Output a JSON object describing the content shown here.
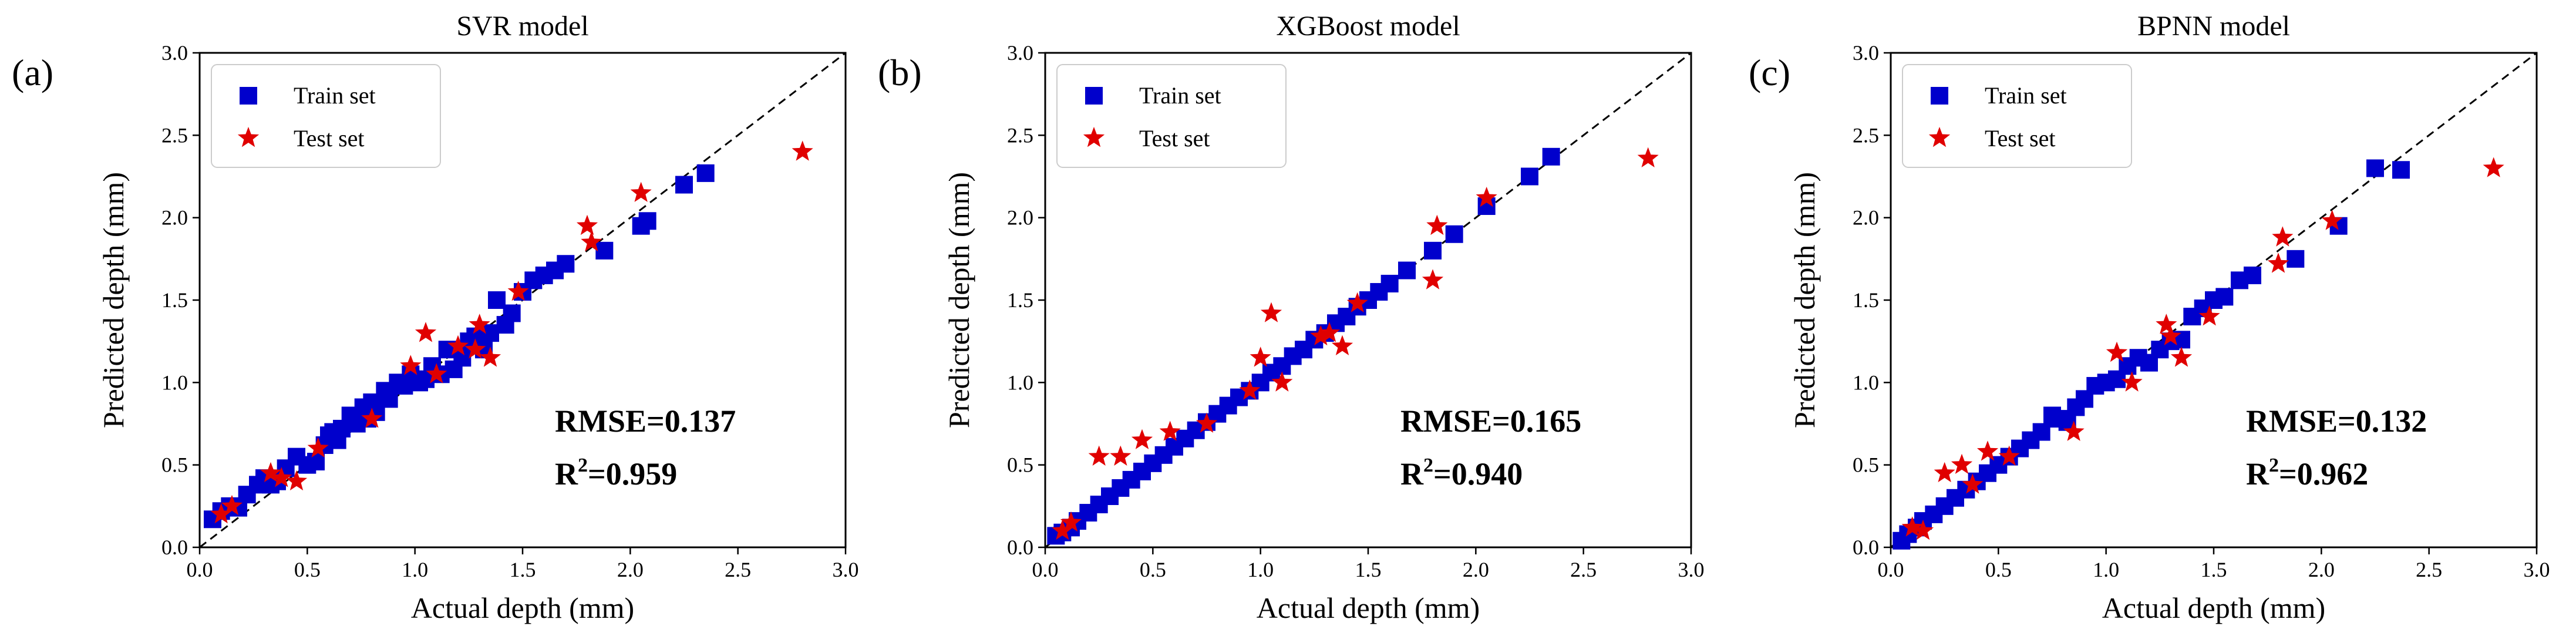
{
  "chart_data": [
    {
      "type": "scatter",
      "panel": "(a)",
      "title": "SVR model",
      "xlabel": "Actual depth (mm)",
      "ylabel": "Predicted depth (mm)",
      "xlim": [
        0,
        3.0
      ],
      "ylim": [
        0,
        3.0
      ],
      "ticks": [
        "0.0",
        "0.5",
        "1.0",
        "1.5",
        "2.0",
        "2.5",
        "3.0"
      ],
      "legend": {
        "placement": "top-left",
        "entries": [
          "Train set",
          "Test set"
        ]
      },
      "rmse_text": "RMSE=0.137",
      "r2_prefix": "R",
      "r2_sup": "2",
      "r2_value": "=0.959",
      "series": [
        {
          "name": "Train set",
          "marker": "square",
          "color": "#0000cc",
          "x": [
            0.06,
            0.1,
            0.14,
            0.18,
            0.22,
            0.27,
            0.3,
            0.33,
            0.36,
            0.4,
            0.45,
            0.5,
            0.54,
            0.58,
            0.6,
            0.62,
            0.64,
            0.66,
            0.7,
            0.73,
            0.76,
            0.78,
            0.8,
            0.82,
            0.86,
            0.88,
            0.92,
            0.95,
            0.98,
            1.02,
            1.05,
            1.08,
            1.12,
            1.15,
            1.18,
            1.22,
            1.25,
            1.28,
            1.32,
            1.35,
            1.38,
            1.42,
            1.45,
            1.5,
            1.55,
            1.6,
            1.65,
            1.7,
            1.88,
            2.05,
            2.08,
            2.25,
            2.35
          ],
          "y": [
            0.17,
            0.22,
            0.25,
            0.24,
            0.32,
            0.38,
            0.42,
            0.38,
            0.4,
            0.48,
            0.55,
            0.5,
            0.52,
            0.62,
            0.68,
            0.7,
            0.65,
            0.72,
            0.8,
            0.75,
            0.85,
            0.78,
            0.88,
            0.82,
            0.95,
            0.9,
            1.0,
            0.98,
            1.05,
            1.0,
            1.02,
            1.1,
            1.05,
            1.2,
            1.08,
            1.15,
            1.25,
            1.28,
            1.2,
            1.3,
            1.5,
            1.35,
            1.42,
            1.55,
            1.62,
            1.65,
            1.68,
            1.72,
            1.8,
            1.95,
            1.98,
            2.2,
            2.27
          ]
        },
        {
          "name": "Test set",
          "marker": "star",
          "color": "#e00000",
          "x": [
            0.1,
            0.15,
            0.33,
            0.38,
            0.45,
            0.55,
            0.8,
            0.98,
            1.05,
            1.1,
            1.2,
            1.28,
            1.3,
            1.35,
            1.48,
            1.8,
            1.82,
            2.05,
            2.8
          ],
          "y": [
            0.2,
            0.25,
            0.45,
            0.42,
            0.4,
            0.6,
            0.78,
            1.1,
            1.3,
            1.05,
            1.22,
            1.2,
            1.35,
            1.15,
            1.55,
            1.95,
            1.85,
            2.15,
            2.4
          ]
        }
      ]
    },
    {
      "type": "scatter",
      "panel": "(b)",
      "title": "XGBoost model",
      "xlabel": "Actual depth (mm)",
      "ylabel": "Predicted depth (mm)",
      "xlim": [
        0,
        3.0
      ],
      "ylim": [
        0,
        3.0
      ],
      "ticks": [
        "0.0",
        "0.5",
        "1.0",
        "1.5",
        "2.0",
        "2.5",
        "3.0"
      ],
      "legend": {
        "placement": "top-left",
        "entries": [
          "Train set",
          "Test set"
        ]
      },
      "rmse_text": "RMSE=0.165",
      "r2_prefix": "R",
      "r2_sup": "2",
      "r2_value": "=0.940",
      "series": [
        {
          "name": "Train set",
          "marker": "square",
          "color": "#0000cc",
          "x": [
            0.05,
            0.08,
            0.12,
            0.15,
            0.2,
            0.25,
            0.3,
            0.35,
            0.4,
            0.45,
            0.5,
            0.55,
            0.6,
            0.65,
            0.7,
            0.75,
            0.8,
            0.85,
            0.9,
            0.95,
            1.0,
            1.05,
            1.1,
            1.15,
            1.2,
            1.25,
            1.3,
            1.35,
            1.4,
            1.45,
            1.5,
            1.55,
            1.6,
            1.68,
            1.8,
            1.9,
            2.05,
            2.25,
            2.35
          ],
          "y": [
            0.07,
            0.09,
            0.12,
            0.16,
            0.21,
            0.26,
            0.31,
            0.36,
            0.41,
            0.46,
            0.51,
            0.56,
            0.61,
            0.66,
            0.71,
            0.76,
            0.81,
            0.86,
            0.91,
            0.95,
            1.0,
            1.06,
            1.1,
            1.16,
            1.2,
            1.26,
            1.3,
            1.36,
            1.4,
            1.46,
            1.5,
            1.55,
            1.6,
            1.68,
            1.8,
            1.9,
            2.07,
            2.25,
            2.37
          ]
        },
        {
          "name": "Test set",
          "marker": "star",
          "color": "#e00000",
          "x": [
            0.08,
            0.12,
            0.25,
            0.35,
            0.45,
            0.58,
            0.75,
            0.95,
            1.0,
            1.05,
            1.1,
            1.28,
            1.32,
            1.38,
            1.45,
            1.8,
            1.82,
            2.05,
            2.8
          ],
          "y": [
            0.1,
            0.15,
            0.55,
            0.55,
            0.65,
            0.7,
            0.75,
            0.95,
            1.15,
            1.42,
            1.0,
            1.28,
            1.3,
            1.22,
            1.48,
            1.62,
            1.95,
            2.12,
            2.36
          ]
        }
      ]
    },
    {
      "type": "scatter",
      "panel": "(c)",
      "title": "BPNN model",
      "xlabel": "Actual depth (mm)",
      "ylabel": "Predicted depth (mm)",
      "xlim": [
        0,
        3.0
      ],
      "ylim": [
        0,
        3.0
      ],
      "ticks": [
        "0.0",
        "0.5",
        "1.0",
        "1.5",
        "2.0",
        "2.5",
        "3.0"
      ],
      "legend": {
        "placement": "top-left",
        "entries": [
          "Train set",
          "Test set"
        ]
      },
      "rmse_text": "RMSE=0.132",
      "r2_prefix": "R",
      "r2_sup": "2",
      "r2_value": "=0.962",
      "series": [
        {
          "name": "Train set",
          "marker": "square",
          "color": "#0000cc",
          "x": [
            0.05,
            0.08,
            0.12,
            0.15,
            0.2,
            0.25,
            0.3,
            0.35,
            0.4,
            0.45,
            0.5,
            0.55,
            0.6,
            0.65,
            0.7,
            0.75,
            0.78,
            0.82,
            0.86,
            0.9,
            0.95,
            1.0,
            1.05,
            1.1,
            1.15,
            1.2,
            1.25,
            1.3,
            1.35,
            1.4,
            1.45,
            1.5,
            1.55,
            1.62,
            1.68,
            1.88,
            2.08,
            2.25,
            2.37
          ],
          "y": [
            0.04,
            0.08,
            0.12,
            0.16,
            0.2,
            0.25,
            0.3,
            0.35,
            0.4,
            0.45,
            0.5,
            0.55,
            0.6,
            0.65,
            0.7,
            0.8,
            0.78,
            0.76,
            0.85,
            0.9,
            0.98,
            1.0,
            1.02,
            1.1,
            1.15,
            1.12,
            1.2,
            1.25,
            1.26,
            1.4,
            1.45,
            1.5,
            1.52,
            1.62,
            1.65,
            1.75,
            1.95,
            2.3,
            2.29
          ]
        },
        {
          "name": "Test set",
          "marker": "star",
          "color": "#e00000",
          "x": [
            0.1,
            0.15,
            0.25,
            0.33,
            0.38,
            0.45,
            0.55,
            0.85,
            1.05,
            1.12,
            1.28,
            1.3,
            1.35,
            1.48,
            1.8,
            1.82,
            2.05,
            2.8
          ],
          "y": [
            0.12,
            0.1,
            0.45,
            0.5,
            0.38,
            0.58,
            0.55,
            0.7,
            1.18,
            1.0,
            1.35,
            1.28,
            1.15,
            1.4,
            1.72,
            1.88,
            1.98,
            2.3
          ]
        }
      ]
    }
  ]
}
